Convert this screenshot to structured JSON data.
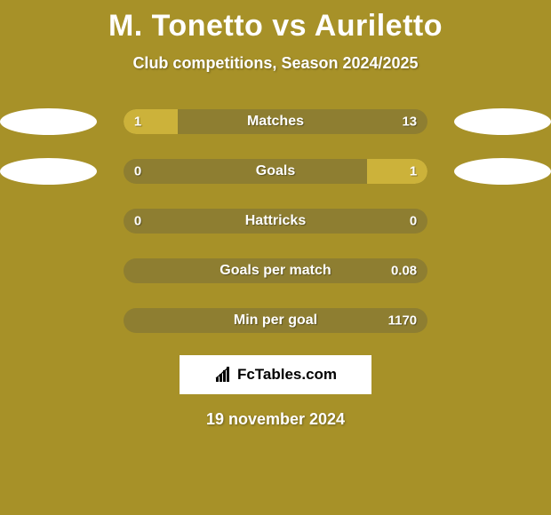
{
  "title": "M. Tonetto vs Auriletto",
  "subtitle": "Club competitions, Season 2024/2025",
  "brand": "FcTables.com",
  "date": "19 november 2024",
  "colors": {
    "page_bg": "#a79128",
    "bar_bg": "#8e7e31",
    "bar_fill": "#ccb23a",
    "text": "#ffffff",
    "ellipse": "#ffffff",
    "brand_bg": "#ffffff",
    "brand_text": "#000000"
  },
  "rows": [
    {
      "label": "Matches",
      "left": "1",
      "right": "13",
      "left_pct": 18,
      "right_pct": 0,
      "show_ellipses": true
    },
    {
      "label": "Goals",
      "left": "0",
      "right": "1",
      "left_pct": 0,
      "right_pct": 20,
      "show_ellipses": true
    },
    {
      "label": "Hattricks",
      "left": "0",
      "right": "0",
      "left_pct": 0,
      "right_pct": 0,
      "show_ellipses": false
    },
    {
      "label": "Goals per match",
      "left": "",
      "right": "0.08",
      "left_pct": 0,
      "right_pct": 0,
      "show_ellipses": false
    },
    {
      "label": "Min per goal",
      "left": "",
      "right": "1170",
      "left_pct": 0,
      "right_pct": 0,
      "show_ellipses": false
    }
  ]
}
